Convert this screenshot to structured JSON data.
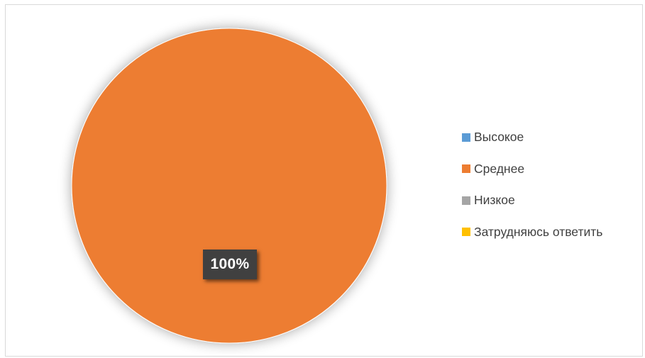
{
  "chart_data": {
    "type": "pie",
    "title": "",
    "categories": [
      "Высокое",
      "Среднее",
      "Низкое",
      "Затрудняюсь ответить"
    ],
    "values": [
      0,
      100,
      0,
      0
    ],
    "unit": "%",
    "colors": [
      "#5b9bd5",
      "#ed7d31",
      "#a5a5a5",
      "#ffc000"
    ],
    "data_labels": [
      "",
      "100%",
      "",
      ""
    ],
    "legend_position": "right"
  }
}
